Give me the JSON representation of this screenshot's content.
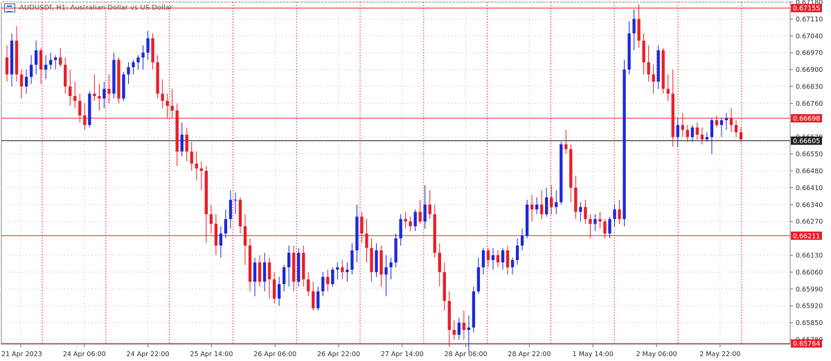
{
  "header": {
    "title": "AUDUSDf, H1:  Australian Dollar vs US Dollar"
  },
  "colors": {
    "bull": "#1f2bd9",
    "bear": "#e8212a",
    "grid": "#d7d7d7",
    "hline": "#e8212a",
    "current": "#222222",
    "axis_text": "#333333"
  },
  "chart_data": {
    "type": "candlestick",
    "symbol": "AUDUSDf",
    "timeframe": "H1",
    "title": "AUDUSDf, H1:  Australian Dollar vs US Dollar",
    "ylim": [
      0.6576,
      0.6718
    ],
    "y_ticks": [
      "0.67180",
      "0.67110",
      "0.67040",
      "0.66970",
      "0.66900",
      "0.66830",
      "0.66760",
      "0.66620",
      "0.66550",
      "0.66480",
      "0.66410",
      "0.66340",
      "0.66270",
      "0.66130",
      "0.66060",
      "0.65990",
      "0.65920",
      "0.65850",
      "0.65780"
    ],
    "x_ticks": [
      "21 Apr 2023",
      "24 Apr 06:00",
      "24 Apr 22:00",
      "25 Apr 14:00",
      "26 Apr 06:00",
      "26 Apr 22:00",
      "27 Apr 14:00",
      "28 Apr 06:00",
      "28 Apr 22:00",
      "1 May 14:00",
      "2 May 06:00",
      "2 May 22:00"
    ],
    "horizontal_lines": [
      {
        "label": "0.67155",
        "price": 0.67155
      },
      {
        "label": "0.66698",
        "price": 0.66698
      },
      {
        "label": "0.66211",
        "price": 0.66211
      },
      {
        "label": "0.65764",
        "price": 0.65764
      }
    ],
    "current_price": {
      "label": "0.66605",
      "price": 0.66605
    },
    "grid": true,
    "candles": [
      [
        0.6695,
        0.67,
        0.6685,
        0.6688
      ],
      [
        0.6688,
        0.6705,
        0.6683,
        0.6702
      ],
      [
        0.6702,
        0.6708,
        0.6685,
        0.6688
      ],
      [
        0.6688,
        0.669,
        0.6678,
        0.6683
      ],
      [
        0.6683,
        0.669,
        0.668,
        0.6687
      ],
      [
        0.6687,
        0.6696,
        0.6684,
        0.6692
      ],
      [
        0.6692,
        0.6702,
        0.6688,
        0.6698
      ],
      [
        0.6698,
        0.6699,
        0.6684,
        0.669
      ],
      [
        0.669,
        0.6696,
        0.6686,
        0.6692
      ],
      [
        0.6692,
        0.6697,
        0.669,
        0.6694
      ],
      [
        0.6694,
        0.6696,
        0.669,
        0.6695
      ],
      [
        0.6695,
        0.6699,
        0.6691,
        0.6692
      ],
      [
        0.6692,
        0.6695,
        0.668,
        0.6683
      ],
      [
        0.6683,
        0.669,
        0.6675,
        0.6679
      ],
      [
        0.6679,
        0.6685,
        0.6674,
        0.6677
      ],
      [
        0.6677,
        0.668,
        0.6668,
        0.6671
      ],
      [
        0.6671,
        0.6676,
        0.6665,
        0.6667
      ],
      [
        0.6667,
        0.6681,
        0.6666,
        0.668
      ],
      [
        0.668,
        0.6688,
        0.6677,
        0.6679
      ],
      [
        0.6679,
        0.6684,
        0.6673,
        0.6678
      ],
      [
        0.6678,
        0.6685,
        0.6674,
        0.6682
      ],
      [
        0.6682,
        0.6688,
        0.6676,
        0.668
      ],
      [
        0.668,
        0.6697,
        0.6678,
        0.6694
      ],
      [
        0.6694,
        0.6695,
        0.6676,
        0.6678
      ],
      [
        0.6678,
        0.6689,
        0.6677,
        0.6688
      ],
      [
        0.6688,
        0.6693,
        0.6684,
        0.6691
      ],
      [
        0.6691,
        0.6694,
        0.6688,
        0.6693
      ],
      [
        0.6693,
        0.6696,
        0.669,
        0.6695
      ],
      [
        0.6695,
        0.67,
        0.669,
        0.6697
      ],
      [
        0.6697,
        0.6706,
        0.6694,
        0.6703
      ],
      [
        0.6703,
        0.6705,
        0.669,
        0.6693
      ],
      [
        0.6693,
        0.6696,
        0.6678,
        0.668
      ],
      [
        0.668,
        0.6686,
        0.6674,
        0.6677
      ],
      [
        0.6677,
        0.668,
        0.667,
        0.6675
      ],
      [
        0.6675,
        0.6682,
        0.667,
        0.6673
      ],
      [
        0.6673,
        0.6676,
        0.665,
        0.6656
      ],
      [
        0.6656,
        0.6668,
        0.6654,
        0.6663
      ],
      [
        0.6663,
        0.6666,
        0.6652,
        0.6656
      ],
      [
        0.6656,
        0.666,
        0.6648,
        0.6651
      ],
      [
        0.6651,
        0.6656,
        0.6644,
        0.6649
      ],
      [
        0.6649,
        0.6652,
        0.664,
        0.6648
      ],
      [
        0.6648,
        0.665,
        0.6618,
        0.663
      ],
      [
        0.663,
        0.6634,
        0.6622,
        0.6626
      ],
      [
        0.6626,
        0.663,
        0.6613,
        0.6617
      ],
      [
        0.6617,
        0.6625,
        0.6612,
        0.6622
      ],
      [
        0.6622,
        0.6632,
        0.662,
        0.6628
      ],
      [
        0.6628,
        0.664,
        0.6624,
        0.6636
      ],
      [
        0.6636,
        0.6639,
        0.663,
        0.6636
      ],
      [
        0.6636,
        0.6637,
        0.6622,
        0.6625
      ],
      [
        0.6625,
        0.663,
        0.6609,
        0.6617
      ],
      [
        0.6617,
        0.662,
        0.6598,
        0.6602
      ],
      [
        0.6602,
        0.6612,
        0.6596,
        0.661
      ],
      [
        0.661,
        0.6613,
        0.66,
        0.6602
      ],
      [
        0.6602,
        0.6614,
        0.6598,
        0.661
      ],
      [
        0.661,
        0.6612,
        0.6595,
        0.6603
      ],
      [
        0.6603,
        0.6606,
        0.6593,
        0.6595
      ],
      [
        0.6595,
        0.6604,
        0.6592,
        0.6601
      ],
      [
        0.6601,
        0.6609,
        0.6598,
        0.6608
      ],
      [
        0.6608,
        0.6617,
        0.66,
        0.6614
      ],
      [
        0.6614,
        0.6617,
        0.6598,
        0.6602
      ],
      [
        0.6602,
        0.6616,
        0.66,
        0.6614
      ],
      [
        0.6614,
        0.6617,
        0.66,
        0.6603
      ],
      [
        0.6603,
        0.6606,
        0.6596,
        0.6598
      ],
      [
        0.6598,
        0.6602,
        0.659,
        0.6591
      ],
      [
        0.6591,
        0.66,
        0.659,
        0.6598
      ],
      [
        0.6598,
        0.6606,
        0.6596,
        0.6604
      ],
      [
        0.6604,
        0.6607,
        0.6598,
        0.6601
      ],
      [
        0.6601,
        0.6608,
        0.66,
        0.6607
      ],
      [
        0.6607,
        0.661,
        0.6603,
        0.6608
      ],
      [
        0.6608,
        0.6611,
        0.6603,
        0.6606
      ],
      [
        0.6606,
        0.661,
        0.6602,
        0.6607
      ],
      [
        0.6607,
        0.6618,
        0.6605,
        0.6615
      ],
      [
        0.6615,
        0.6634,
        0.661,
        0.6629
      ],
      [
        0.6629,
        0.6631,
        0.6618,
        0.6622
      ],
      [
        0.6622,
        0.6628,
        0.661,
        0.6616
      ],
      [
        0.6616,
        0.662,
        0.6602,
        0.6606
      ],
      [
        0.6606,
        0.6618,
        0.6604,
        0.6615
      ],
      [
        0.6615,
        0.6617,
        0.66,
        0.6605
      ],
      [
        0.6605,
        0.6613,
        0.6596,
        0.6608
      ],
      [
        0.6608,
        0.6612,
        0.6603,
        0.661
      ],
      [
        0.661,
        0.6622,
        0.6608,
        0.662
      ],
      [
        0.662,
        0.663,
        0.6617,
        0.6628
      ],
      [
        0.6628,
        0.6631,
        0.6624,
        0.6627
      ],
      [
        0.6627,
        0.6629,
        0.6623,
        0.6625
      ],
      [
        0.6625,
        0.6632,
        0.6623,
        0.6631
      ],
      [
        0.6631,
        0.6636,
        0.6626,
        0.6627
      ],
      [
        0.6627,
        0.6642,
        0.6624,
        0.6634
      ],
      [
        0.6634,
        0.664,
        0.6628,
        0.663
      ],
      [
        0.663,
        0.6634,
        0.6612,
        0.6614
      ],
      [
        0.6614,
        0.6618,
        0.66,
        0.6606
      ],
      [
        0.6606,
        0.661,
        0.659,
        0.6594
      ],
      [
        0.6594,
        0.6598,
        0.6575,
        0.6582
      ],
      [
        0.6582,
        0.6586,
        0.6578,
        0.658
      ],
      [
        0.658,
        0.6587,
        0.6578,
        0.6585
      ],
      [
        0.6585,
        0.659,
        0.6578,
        0.6582
      ],
      [
        0.6582,
        0.6588,
        0.6573,
        0.6583
      ],
      [
        0.6583,
        0.66,
        0.6581,
        0.6598
      ],
      [
        0.6598,
        0.6612,
        0.6597,
        0.6608
      ],
      [
        0.6608,
        0.6616,
        0.6605,
        0.6615
      ],
      [
        0.6615,
        0.6616,
        0.6608,
        0.6611
      ],
      [
        0.6611,
        0.6616,
        0.6607,
        0.6613
      ],
      [
        0.6613,
        0.6615,
        0.6608,
        0.661
      ],
      [
        0.661,
        0.6616,
        0.6607,
        0.6615
      ],
      [
        0.6615,
        0.6617,
        0.6605,
        0.6608
      ],
      [
        0.6608,
        0.6612,
        0.6605,
        0.6611
      ],
      [
        0.6611,
        0.662,
        0.6609,
        0.6617
      ],
      [
        0.6617,
        0.6624,
        0.6615,
        0.6621
      ],
      [
        0.6621,
        0.6636,
        0.662,
        0.6634
      ],
      [
        0.6634,
        0.6638,
        0.6627,
        0.6632
      ],
      [
        0.6632,
        0.6637,
        0.663,
        0.6634
      ],
      [
        0.6634,
        0.664,
        0.6628,
        0.663
      ],
      [
        0.663,
        0.6641,
        0.6629,
        0.6637
      ],
      [
        0.6637,
        0.6642,
        0.663,
        0.6633
      ],
      [
        0.6633,
        0.664,
        0.663,
        0.6635
      ],
      [
        0.6635,
        0.666,
        0.6634,
        0.6659
      ],
      [
        0.6659,
        0.6665,
        0.6655,
        0.6657
      ],
      [
        0.6657,
        0.6659,
        0.6635,
        0.6641
      ],
      [
        0.6641,
        0.6646,
        0.6628,
        0.6631
      ],
      [
        0.6631,
        0.6635,
        0.6627,
        0.6633
      ],
      [
        0.6633,
        0.6636,
        0.6626,
        0.6628
      ],
      [
        0.6628,
        0.663,
        0.662,
        0.6626
      ],
      [
        0.6626,
        0.663,
        0.6623,
        0.6628
      ],
      [
        0.6628,
        0.6631,
        0.6624,
        0.6627
      ],
      [
        0.6627,
        0.6628,
        0.662,
        0.6622
      ],
      [
        0.6622,
        0.6629,
        0.662,
        0.6628
      ],
      [
        0.6628,
        0.6634,
        0.6625,
        0.6632
      ],
      [
        0.6632,
        0.6636,
        0.6626,
        0.6628
      ],
      [
        0.6628,
        0.6694,
        0.6625,
        0.669
      ],
      [
        0.669,
        0.671,
        0.6688,
        0.6705
      ],
      [
        0.6705,
        0.6715,
        0.6698,
        0.6711
      ],
      [
        0.6711,
        0.6717,
        0.6699,
        0.6702
      ],
      [
        0.6702,
        0.6705,
        0.6688,
        0.6693
      ],
      [
        0.6693,
        0.67,
        0.6685,
        0.6688
      ],
      [
        0.6688,
        0.6692,
        0.668,
        0.6685
      ],
      [
        0.6685,
        0.67,
        0.6682,
        0.6698
      ],
      [
        0.6698,
        0.6699,
        0.668,
        0.6682
      ],
      [
        0.6682,
        0.6688,
        0.6677,
        0.668
      ],
      [
        0.668,
        0.669,
        0.6658,
        0.6662
      ],
      [
        0.6662,
        0.667,
        0.6658,
        0.6667
      ],
      [
        0.6667,
        0.6672,
        0.6662,
        0.6665
      ],
      [
        0.6665,
        0.6667,
        0.666,
        0.6662
      ],
      [
        0.6662,
        0.6667,
        0.666,
        0.6666
      ],
      [
        0.6666,
        0.6668,
        0.6661,
        0.6663
      ],
      [
        0.6663,
        0.6666,
        0.6659,
        0.6661
      ],
      [
        0.6661,
        0.6664,
        0.666,
        0.6662
      ],
      [
        0.6662,
        0.667,
        0.6655,
        0.6669
      ],
      [
        0.6669,
        0.6671,
        0.6666,
        0.6667
      ],
      [
        0.6667,
        0.667,
        0.6662,
        0.6669
      ],
      [
        0.6669,
        0.6672,
        0.6665,
        0.667
      ],
      [
        0.667,
        0.6674,
        0.6664,
        0.6667
      ],
      [
        0.6667,
        0.6669,
        0.6662,
        0.6664
      ],
      [
        0.6664,
        0.6666,
        0.666,
        0.6661
      ]
    ]
  }
}
